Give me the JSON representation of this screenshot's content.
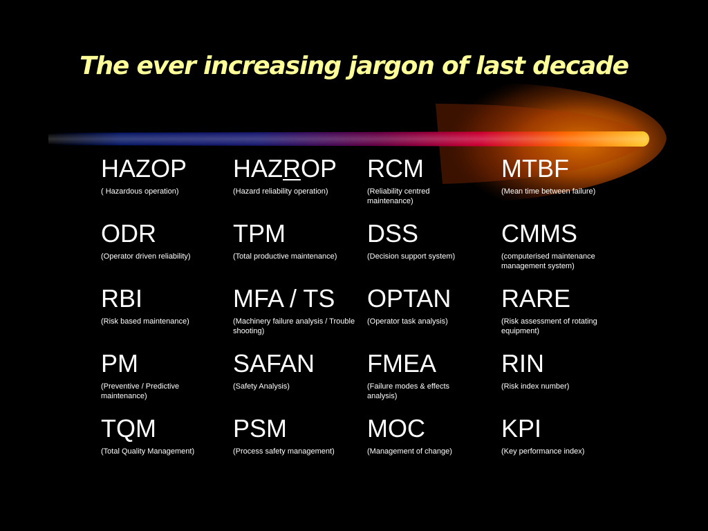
{
  "slide": {
    "title": "The ever increasing jargon of last decade",
    "colors": {
      "background": "#000000",
      "title": "#ffff99",
      "text": "#ffffff",
      "swoosh_orange": "#ff9900",
      "swoosh_red": "#cc0033",
      "swoosh_blue": "#0a1a66"
    },
    "terms": [
      [
        {
          "abbr": "HAZOP",
          "desc": "( Hazardous operation)"
        },
        {
          "abbr_pre": "HAZ",
          "abbr_ul": "R",
          "abbr_post": "OP",
          "desc": "(Hazard reliability operation)"
        },
        {
          "abbr": "RCM",
          "desc": "(Reliability centred maintenance)"
        },
        {
          "abbr": "MTBF",
          "desc": "(Mean time between failure)"
        }
      ],
      [
        {
          "abbr": "ODR",
          "desc": "(Operator driven reliability)"
        },
        {
          "abbr": "TPM",
          "desc": "(Total productive maintenance)"
        },
        {
          "abbr": "DSS",
          "desc": "(Decision support system)"
        },
        {
          "abbr": "CMMS",
          "desc": "(computerised maintenance management system)"
        }
      ],
      [
        {
          "abbr": "RBI",
          "desc": "(Risk based maintenance)"
        },
        {
          "abbr": "MFA / TS",
          "desc": "(Machinery failure analysis / Trouble shooting)"
        },
        {
          "abbr": "OPTAN",
          "desc": "(Operator task analysis)"
        },
        {
          "abbr": "RARE",
          "desc": "(Risk assessment of rotating equipment)"
        }
      ],
      [
        {
          "abbr": "PM",
          "desc": "(Preventive / Predictive maintenance)"
        },
        {
          "abbr": "SAFAN",
          "desc": "(Safety Analysis)"
        },
        {
          "abbr": "FMEA",
          "desc": "(Failure modes & effects analysis)"
        },
        {
          "abbr": "RIN",
          "desc": "(Risk index number)"
        }
      ],
      [
        {
          "abbr": "TQM",
          "desc": "(Total Quality Management)"
        },
        {
          "abbr": "PSM",
          "desc": "(Process safety management)"
        },
        {
          "abbr": "MOC",
          "desc": "(Management of change)"
        },
        {
          "abbr": "KPI",
          "desc": "(Key performance index)"
        }
      ]
    ]
  }
}
